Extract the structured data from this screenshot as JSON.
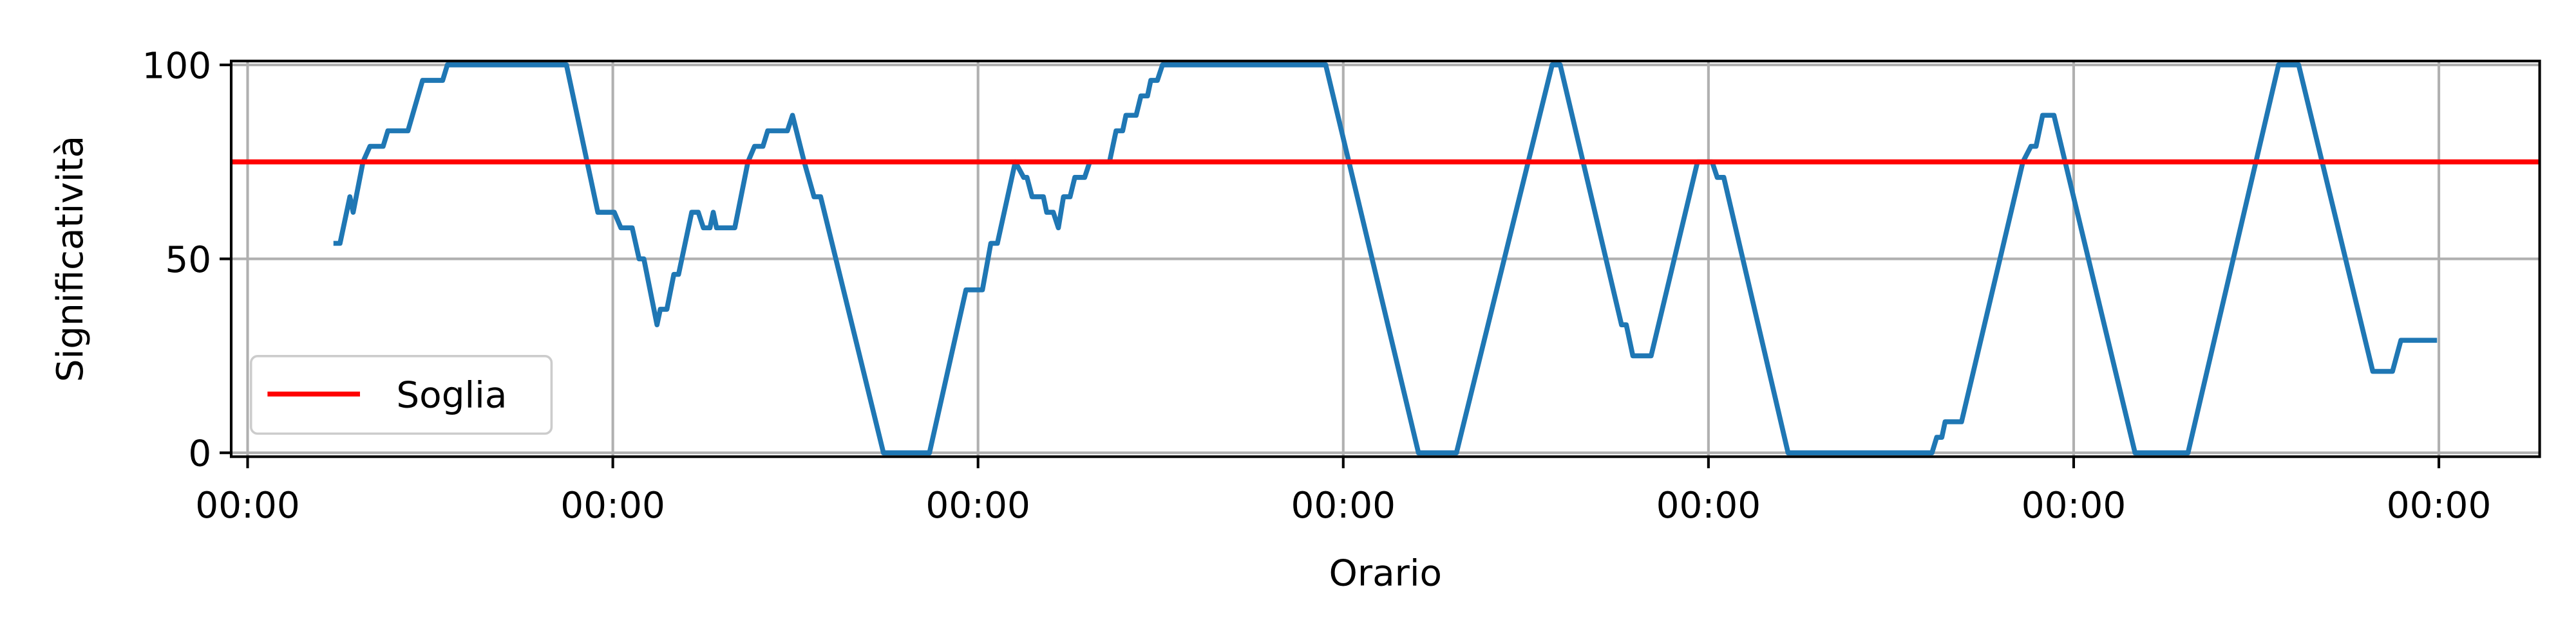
{
  "chart_data": {
    "type": "line",
    "x_label": "Orario",
    "y_label": "Significatività",
    "xlim": [
      -0.045,
      6.276
    ],
    "ylim": [
      -1,
      101
    ],
    "xticks": [
      {
        "value": 0,
        "label": "00:00"
      },
      {
        "value": 1,
        "label": "00:00"
      },
      {
        "value": 2,
        "label": "00:00"
      },
      {
        "value": 3,
        "label": "00:00"
      },
      {
        "value": 4,
        "label": "00:00"
      },
      {
        "value": 5,
        "label": "00:00"
      },
      {
        "value": 6,
        "label": "00:00"
      }
    ],
    "yticks": [
      0,
      50,
      100
    ],
    "grid": true,
    "legend": "lower left",
    "threshold": {
      "name": "Soglia",
      "value": 75,
      "color": "#ff0000"
    },
    "series": [
      {
        "color": "#1f77b4",
        "x": [
          0.235,
          0.253,
          0.28,
          0.289,
          0.316,
          0.335,
          0.371,
          0.384,
          0.439,
          0.479,
          0.534,
          0.547,
          0.873,
          0.959,
          1.004,
          1.022,
          1.053,
          1.072,
          1.085,
          1.121,
          1.13,
          1.148,
          1.167,
          1.18,
          1.216,
          1.234,
          1.248,
          1.266,
          1.275,
          1.284,
          1.334,
          1.37,
          1.388,
          1.411,
          1.424,
          1.478,
          1.492,
          1.524,
          1.551,
          1.569,
          1.741,
          1.867,
          1.967,
          2.012,
          2.035,
          2.053,
          2.102,
          2.125,
          2.134,
          2.148,
          2.179,
          2.188,
          2.206,
          2.22,
          2.234,
          2.252,
          2.265,
          2.292,
          2.306,
          2.36,
          2.378,
          2.396,
          2.405,
          2.433,
          2.446,
          2.464,
          2.473,
          2.491,
          2.505,
          2.952,
          3.206,
          3.31,
          3.572,
          3.594,
          3.762,
          3.775,
          3.793,
          3.843,
          3.97,
          4.01,
          4.024,
          4.042,
          4.218,
          4.612,
          4.625,
          4.639,
          4.648,
          4.693,
          4.861,
          4.883,
          4.897,
          4.915,
          4.946,
          5.168,
          5.313,
          5.561,
          5.616,
          5.819,
          5.873,
          5.896,
          5.995
        ],
        "values": [
          54,
          54,
          66,
          62,
          75,
          79,
          79,
          83,
          83,
          96,
          96,
          100,
          100,
          62,
          62,
          58,
          58,
          50,
          50,
          33,
          37,
          37,
          46,
          46,
          62,
          62,
          58,
          58,
          62,
          58,
          58,
          75,
          79,
          79,
          83,
          83,
          87,
          75,
          66,
          66,
          0,
          0,
          42,
          42,
          54,
          54,
          75,
          71,
          71,
          66,
          66,
          62,
          62,
          58,
          66,
          66,
          71,
          71,
          75,
          75,
          83,
          83,
          87,
          87,
          92,
          92,
          96,
          96,
          100,
          100,
          0,
          0,
          100,
          100,
          33,
          33,
          25,
          25,
          75,
          75,
          71,
          71,
          0,
          0,
          4,
          4,
          8,
          8,
          75,
          79,
          79,
          87,
          87,
          0,
          0,
          100,
          100,
          21,
          21,
          29,
          29
        ]
      }
    ]
  }
}
